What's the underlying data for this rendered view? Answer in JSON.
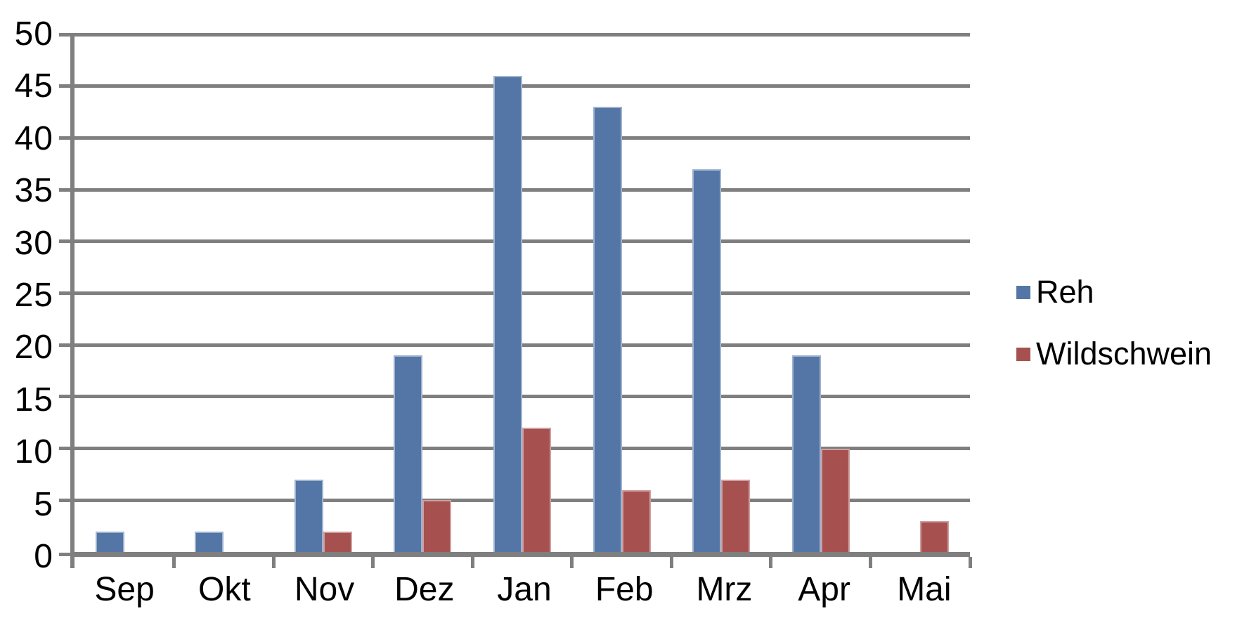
{
  "chart_data": {
    "type": "bar",
    "title": "",
    "xlabel": "",
    "ylabel": "",
    "categories": [
      "Sep",
      "Okt",
      "Nov",
      "Dez",
      "Jan",
      "Feb",
      "Mrz",
      "Apr",
      "Mai"
    ],
    "series": [
      {
        "name": "Reh",
        "color": "#5376A7",
        "values": [
          2,
          2,
          7,
          19,
          46,
          43,
          37,
          19,
          0
        ]
      },
      {
        "name": "Wildschwein",
        "color": "#A65150",
        "values": [
          0,
          0,
          2,
          5,
          12,
          6,
          7,
          10,
          3
        ]
      }
    ],
    "ylim": [
      0,
      50
    ],
    "y_ticks": [
      0,
      5,
      10,
      15,
      20,
      25,
      30,
      35,
      40,
      45,
      50
    ],
    "grid": true,
    "grid_color": "#7F7F7F",
    "axis_color": "#7F7F7F",
    "text_color": "#000000",
    "legend_position": "right"
  }
}
